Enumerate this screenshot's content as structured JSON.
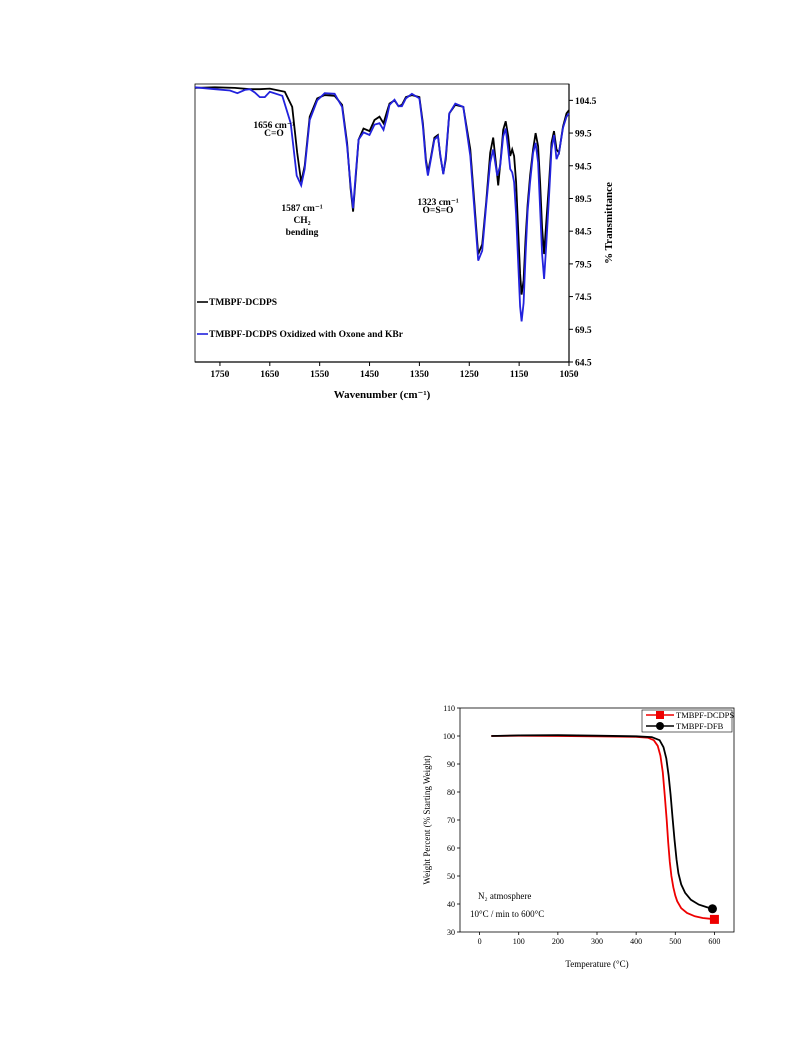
{
  "chart_data": [
    {
      "type": "line",
      "xlabel": "Wavenumber (cm⁻¹)",
      "ylabel": "% Transmittance",
      "xlim": [
        1800,
        1050
      ],
      "ylim": [
        64.5,
        107
      ],
      "x_reversed": true,
      "y_axis_side": "right",
      "x_ticks": [
        1750,
        1650,
        1550,
        1450,
        1350,
        1250,
        1150,
        1050
      ],
      "y_ticks": [
        64.5,
        69.5,
        74.5,
        79.5,
        84.5,
        89.5,
        94.5,
        99.5,
        104.5
      ],
      "series": [
        {
          "name": "TMBPF-DCDPS",
          "color": "#000000",
          "x": [
            1800,
            1760,
            1720,
            1690,
            1670,
            1650,
            1620,
            1605,
            1595,
            1587,
            1580,
            1570,
            1555,
            1540,
            1520,
            1505,
            1495,
            1488,
            1483,
            1478,
            1472,
            1462,
            1450,
            1440,
            1430,
            1422,
            1415,
            1410,
            1400,
            1392,
            1385,
            1377,
            1365,
            1350,
            1343,
            1337,
            1333,
            1327,
            1320,
            1313,
            1308,
            1302,
            1297,
            1290,
            1278,
            1262,
            1248,
            1240,
            1232,
            1224,
            1216,
            1208,
            1202,
            1196,
            1192,
            1187,
            1182,
            1177,
            1172,
            1168,
            1164,
            1160,
            1156,
            1152,
            1148,
            1145,
            1141,
            1137,
            1133,
            1128,
            1122,
            1117,
            1112,
            1108,
            1104,
            1100,
            1096,
            1090,
            1085,
            1080,
            1075,
            1070,
            1062,
            1055,
            1050
          ],
          "y": [
            106.4,
            106.5,
            106.4,
            106.2,
            106.2,
            106.3,
            105.8,
            103.5,
            96.5,
            92.0,
            94.5,
            102.0,
            104.8,
            105.3,
            105.2,
            103.8,
            98.0,
            91.0,
            87.5,
            92.5,
            98.5,
            100.2,
            99.8,
            101.5,
            102.0,
            101.0,
            102.8,
            104.0,
            104.5,
            103.6,
            103.8,
            105.0,
            105.3,
            105.0,
            101.0,
            95.5,
            93.5,
            95.8,
            98.8,
            99.2,
            96.0,
            93.3,
            95.5,
            102.5,
            103.8,
            103.5,
            97.0,
            89.0,
            81.0,
            82.5,
            89.0,
            96.5,
            98.8,
            94.5,
            91.5,
            95.5,
            100.0,
            101.3,
            99.0,
            96.0,
            97.0,
            96.0,
            92.0,
            85.0,
            78.0,
            74.8,
            77.0,
            83.5,
            88.5,
            93.0,
            97.0,
            99.5,
            97.5,
            92.0,
            85.0,
            81.0,
            85.5,
            92.0,
            98.0,
            99.8,
            97.0,
            96.5,
            100.5,
            102.5,
            103.0
          ]
        },
        {
          "name": "TMBPF-DCDPS Oxidized with Oxone and KBr",
          "color": "#2222dd",
          "x": [
            1800,
            1760,
            1730,
            1715,
            1700,
            1690,
            1680,
            1670,
            1660,
            1650,
            1625,
            1608,
            1596,
            1587,
            1580,
            1570,
            1555,
            1540,
            1520,
            1505,
            1495,
            1488,
            1483,
            1478,
            1472,
            1462,
            1450,
            1440,
            1430,
            1422,
            1415,
            1410,
            1400,
            1392,
            1385,
            1377,
            1365,
            1350,
            1343,
            1337,
            1333,
            1327,
            1320,
            1313,
            1308,
            1302,
            1297,
            1290,
            1278,
            1262,
            1248,
            1240,
            1232,
            1224,
            1216,
            1208,
            1202,
            1198,
            1194,
            1188,
            1182,
            1177,
            1172,
            1168,
            1164,
            1160,
            1156,
            1152,
            1148,
            1145,
            1141,
            1137,
            1133,
            1128,
            1122,
            1117,
            1112,
            1108,
            1104,
            1100,
            1096,
            1090,
            1085,
            1080,
            1075,
            1070,
            1062,
            1055,
            1050
          ],
          "y": [
            106.5,
            106.2,
            106.0,
            105.6,
            106.1,
            106.2,
            105.7,
            105.0,
            105.0,
            105.8,
            105.2,
            101.0,
            93.0,
            91.5,
            94.0,
            101.5,
            104.5,
            105.6,
            105.5,
            103.5,
            97.5,
            91.5,
            88.0,
            93.0,
            98.5,
            99.6,
            99.2,
            100.8,
            101.0,
            100.0,
            102.0,
            103.8,
            104.6,
            103.6,
            103.6,
            104.8,
            105.5,
            104.8,
            100.5,
            95.0,
            93.0,
            95.5,
            98.5,
            99.0,
            96.2,
            93.2,
            96.0,
            102.5,
            104.0,
            103.5,
            96.0,
            88.0,
            80.0,
            81.5,
            88.5,
            95.0,
            97.0,
            95.0,
            93.0,
            94.5,
            99.0,
            100.2,
            97.0,
            94.0,
            93.5,
            92.0,
            87.0,
            80.0,
            73.0,
            70.7,
            73.5,
            81.0,
            87.5,
            92.0,
            96.5,
            98.0,
            95.0,
            88.0,
            81.0,
            77.2,
            82.0,
            90.0,
            97.0,
            99.2,
            95.5,
            96.5,
            100.3,
            102.0,
            102.5
          ]
        }
      ],
      "annotations": [
        {
          "line1": "1656 cm⁻¹",
          "line2": "C=O"
        },
        {
          "line1": "1587 cm⁻¹",
          "line2": "CH₂",
          "line3": "bending"
        },
        {
          "line1": "1323 cm⁻¹",
          "line2": "O=S=O"
        }
      ]
    },
    {
      "type": "line",
      "xlabel": "Temperature (°C)",
      "ylabel": "Weight Percent (% Starting Weight)",
      "xlim": [
        -50,
        650
      ],
      "ylim": [
        30,
        110
      ],
      "x_ticks": [
        0,
        100,
        200,
        300,
        400,
        500,
        600
      ],
      "y_ticks": [
        30,
        40,
        50,
        60,
        70,
        80,
        90,
        100,
        110
      ],
      "legend_position": "top-right",
      "series": [
        {
          "name": "TMBPF-DCDPS",
          "color": "#ee0000",
          "marker": "square",
          "x": [
            30,
            100,
            200,
            300,
            400,
            430,
            445,
            455,
            462,
            468,
            473,
            478,
            482,
            486,
            490,
            495,
            500,
            505,
            515,
            530,
            550,
            570,
            590,
            600
          ],
          "y": [
            100.0,
            100.1,
            100.0,
            99.9,
            99.7,
            99.4,
            98.5,
            96.5,
            93.0,
            87.0,
            79.0,
            70.0,
            62.0,
            55.0,
            50.0,
            46.0,
            43.0,
            41.0,
            38.5,
            36.8,
            35.6,
            35.0,
            34.7,
            34.5
          ]
        },
        {
          "name": "TMBPF-DFB",
          "color": "#000000",
          "marker": "circle",
          "x": [
            30,
            100,
            200,
            300,
            400,
            440,
            460,
            470,
            477,
            483,
            488,
            493,
            498,
            503,
            508,
            515,
            525,
            540,
            560,
            580,
            595
          ],
          "y": [
            100.0,
            100.2,
            100.3,
            100.1,
            99.9,
            99.6,
            98.5,
            96.0,
            92.0,
            86.0,
            79.0,
            71.0,
            63.0,
            56.0,
            51.0,
            47.0,
            44.0,
            41.5,
            39.8,
            38.9,
            38.3
          ]
        }
      ],
      "annotations": [
        {
          "line1": "N₂ atmosphere"
        },
        {
          "line1": "10°C / min to 600°C"
        }
      ]
    }
  ]
}
